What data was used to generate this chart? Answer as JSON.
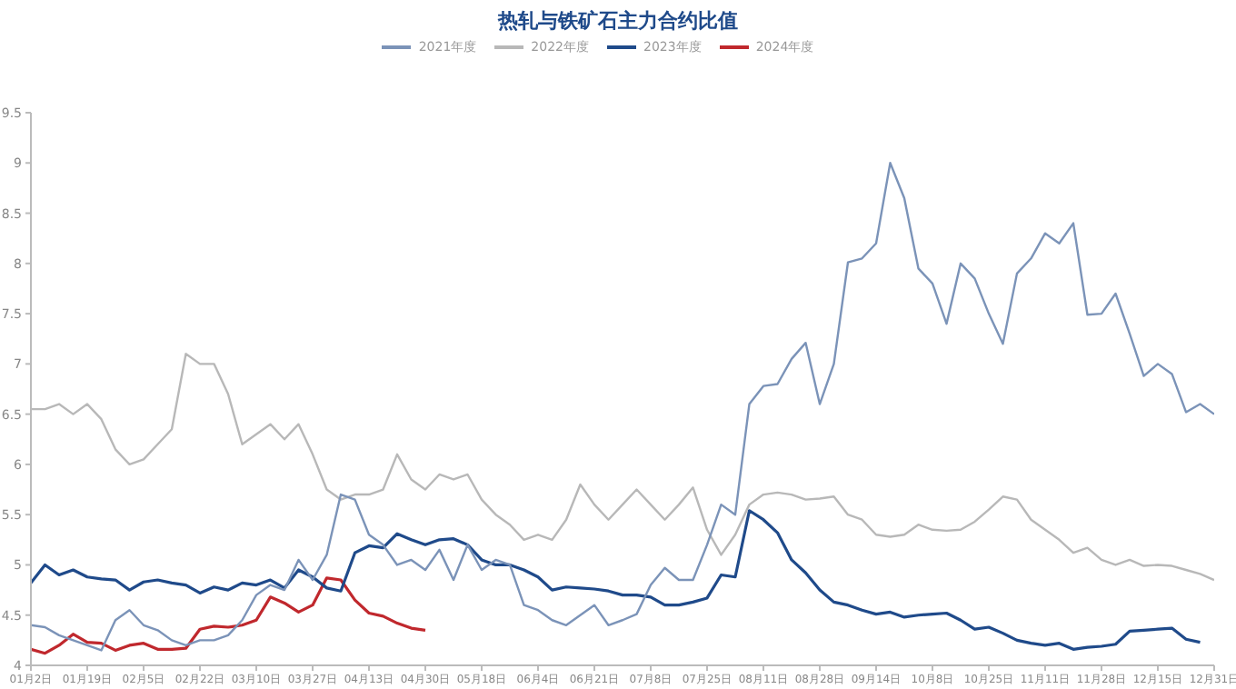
{
  "chart_data": {
    "type": "line",
    "title": "热轧与铁矿石主力合约比值",
    "categories": [
      "01月2日",
      null,
      null,
      null,
      "01月19日",
      null,
      null,
      null,
      "02月5日",
      null,
      null,
      null,
      "02月22日",
      null,
      null,
      null,
      "03月10日",
      null,
      null,
      null,
      "03月27日",
      null,
      null,
      null,
      "04月13日",
      null,
      null,
      null,
      "04月30日",
      null,
      null,
      null,
      "05月18日",
      null,
      null,
      null,
      "06月4日",
      null,
      null,
      null,
      "06月21日",
      null,
      null,
      null,
      "07月8日",
      null,
      null,
      null,
      "07月25日",
      null,
      null,
      null,
      "08月11日",
      null,
      null,
      null,
      "08月28日",
      null,
      null,
      null,
      "09月14日",
      null,
      null,
      null,
      "10月8日",
      null,
      null,
      null,
      "10月25日",
      null,
      null,
      null,
      "11月11日",
      null,
      null,
      null,
      "11月28日",
      null,
      null,
      null,
      "12月15日",
      null,
      null,
      null,
      "12月31日"
    ],
    "series": [
      {
        "name": "2024年度",
        "color": "#c0282d",
        "values": [
          4.16,
          4.12,
          4.2,
          4.31,
          4.23,
          4.22,
          4.15,
          4.2,
          4.22,
          4.16,
          4.16,
          4.17,
          4.36,
          4.39,
          4.38,
          4.4,
          4.45,
          4.68,
          4.62,
          4.53,
          4.6,
          4.87,
          4.85,
          4.65,
          4.52,
          4.49,
          4.42,
          4.37,
          4.35,
          null,
          null,
          null,
          null,
          null,
          null,
          null,
          null,
          null,
          null,
          null,
          null,
          null,
          null,
          null,
          null,
          null,
          null,
          null,
          null,
          null,
          null,
          null,
          null,
          null,
          null,
          null,
          null,
          null,
          null,
          null,
          null,
          null,
          null,
          null,
          null,
          null,
          null,
          null,
          null,
          null,
          null,
          null,
          null,
          null,
          null,
          null,
          null,
          null,
          null,
          null,
          null,
          null,
          null,
          null,
          null
        ]
      },
      {
        "name": "2023年度",
        "color": "#1f4a8a",
        "values": [
          4.82,
          5.0,
          4.9,
          4.95,
          4.88,
          4.86,
          4.85,
          4.75,
          4.83,
          4.85,
          4.82,
          4.8,
          4.72,
          4.78,
          4.75,
          4.82,
          4.8,
          4.85,
          4.77,
          4.95,
          4.88,
          4.77,
          4.74,
          5.12,
          5.19,
          5.17,
          5.31,
          5.25,
          5.2,
          5.25,
          5.26,
          5.2,
          5.05,
          5.0,
          5.0,
          4.95,
          4.88,
          4.75,
          4.78,
          4.77,
          4.76,
          4.74,
          4.7,
          4.7,
          4.68,
          4.6,
          4.6,
          4.63,
          4.67,
          4.9,
          4.88,
          5.54,
          5.45,
          5.32,
          5.05,
          4.92,
          4.75,
          4.63,
          4.6,
          4.55,
          4.51,
          4.53,
          4.48,
          4.5,
          4.51,
          4.52,
          4.45,
          4.36,
          4.38,
          4.32,
          4.25,
          4.22,
          4.2,
          4.22,
          4.16,
          4.18,
          4.19,
          4.21,
          4.34,
          4.35,
          4.36,
          4.37,
          4.26,
          4.23,
          null
        ]
      },
      {
        "name": "2022年度",
        "color": "#b8b8b8",
        "values": [
          6.55,
          6.55,
          6.6,
          6.5,
          6.6,
          6.45,
          6.15,
          6.0,
          6.05,
          6.2,
          6.35,
          7.1,
          7.0,
          7.0,
          6.7,
          6.2,
          6.3,
          6.4,
          6.25,
          6.4,
          6.1,
          5.75,
          5.65,
          5.7,
          5.7,
          5.75,
          6.1,
          5.85,
          5.75,
          5.9,
          5.85,
          5.9,
          5.65,
          5.5,
          5.4,
          5.25,
          5.3,
          5.25,
          5.45,
          5.8,
          5.6,
          5.45,
          5.6,
          5.75,
          5.6,
          5.45,
          5.6,
          5.77,
          5.35,
          5.1,
          5.3,
          5.6,
          5.7,
          5.72,
          5.7,
          5.65,
          5.66,
          5.68,
          5.5,
          5.45,
          5.3,
          5.28,
          5.3,
          5.4,
          5.35,
          5.34,
          5.35,
          5.43,
          5.55,
          5.68,
          5.65,
          5.45,
          5.35,
          5.25,
          5.12,
          5.17,
          5.05,
          5.0,
          5.05,
          4.99,
          5.0,
          4.99,
          4.95,
          4.91,
          4.85
        ]
      },
      {
        "name": "2021年度",
        "color": "#7b93b8",
        "values": [
          4.4,
          4.38,
          4.3,
          4.25,
          4.2,
          4.15,
          4.45,
          4.55,
          4.4,
          4.35,
          4.25,
          4.2,
          4.25,
          4.25,
          4.3,
          4.45,
          4.7,
          4.8,
          4.75,
          5.05,
          4.85,
          5.1,
          5.7,
          5.65,
          5.3,
          5.2,
          5.0,
          5.05,
          4.95,
          5.15,
          4.85,
          5.2,
          4.95,
          5.05,
          5.0,
          4.6,
          4.55,
          4.45,
          4.4,
          4.5,
          4.6,
          4.4,
          4.45,
          4.51,
          4.8,
          4.97,
          4.85,
          4.85,
          5.2,
          5.6,
          5.5,
          6.6,
          6.78,
          6.8,
          7.05,
          7.21,
          6.6,
          7.0,
          8.01,
          8.05,
          8.2,
          9.0,
          8.65,
          7.95,
          7.8,
          7.4,
          8.0,
          7.85,
          7.5,
          7.2,
          7.9,
          8.05,
          8.3,
          8.2,
          8.4,
          7.49,
          7.5,
          7.7,
          7.3,
          6.88,
          7.0,
          6.9,
          6.52,
          6.6,
          6.5
        ]
      }
    ],
    "ylim": [
      4,
      9.5
    ],
    "yticks": [
      4,
      4.5,
      5,
      5.5,
      6,
      6.5,
      7,
      7.5,
      8,
      8.5,
      9,
      9.5
    ],
    "legend": "top",
    "grid": false
  }
}
